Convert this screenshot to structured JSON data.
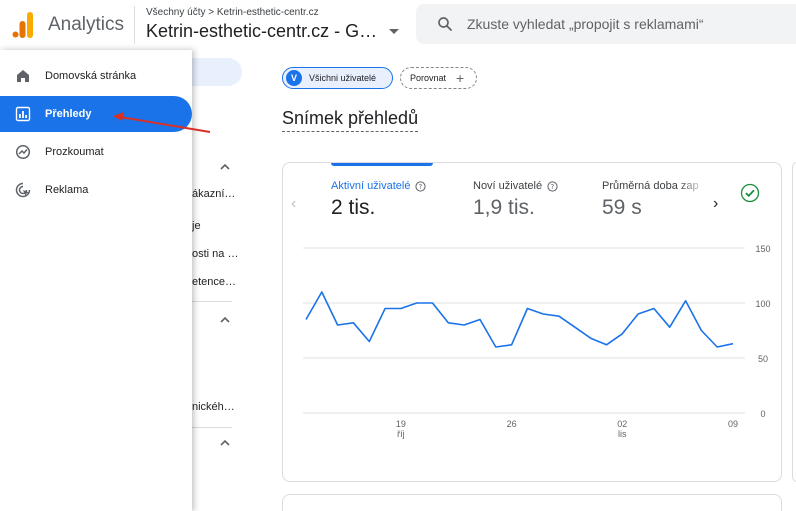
{
  "header": {
    "app_title": "Analytics",
    "breadcrumb": "Všechny účty > Ketrin-esthetic-centr.cz",
    "account_name": "Ketrin-esthetic-centr.cz - G…",
    "search_placeholder": "Zkuste vyhledat „propojit s reklamami“"
  },
  "nav": {
    "items": [
      {
        "label": "Domovská stránka",
        "icon": "home-icon"
      },
      {
        "label": "Přehledy",
        "icon": "reports-icon",
        "active": true
      },
      {
        "label": "Prozkoumat",
        "icon": "explore-icon"
      },
      {
        "label": "Reklama",
        "icon": "advertising-icon"
      }
    ]
  },
  "underlay": {
    "items": [
      "ákazní…",
      "je",
      "osti na …",
      "etence…",
      "nickéh…"
    ]
  },
  "filters": {
    "badge": "V",
    "all_users": "Všichni uživatelé",
    "compare": "Porovnat"
  },
  "page_title": "Snímek přehledů",
  "card": {
    "metrics": [
      {
        "label": "Aktivní uživatelé",
        "value": "2 tis.",
        "active": true
      },
      {
        "label": "Noví uživatelé",
        "value": "1,9 tis."
      },
      {
        "label": "Průměrná doba zap",
        "value": "59 s"
      }
    ]
  },
  "colors": {
    "accent": "#1a73e8",
    "arrow": "#d93025",
    "check": "#1e8e3e",
    "logo_orange": "#f9ab00",
    "logo_dark": "#e37400"
  },
  "chart_data": {
    "type": "line",
    "x_ticks": [
      {
        "label": "19",
        "sublabel": "říj",
        "index": 6
      },
      {
        "label": "26",
        "sublabel": "",
        "index": 13
      },
      {
        "label": "02",
        "sublabel": "lis",
        "index": 20
      },
      {
        "label": "09",
        "sublabel": "",
        "index": 27
      }
    ],
    "y_ticks": [
      0,
      50,
      100,
      150
    ],
    "ylim": [
      0,
      150
    ],
    "series": [
      {
        "values": [
          85,
          110,
          80,
          82,
          65,
          95,
          95,
          100,
          100,
          82,
          80,
          85,
          60,
          62,
          95,
          90,
          88,
          78,
          68,
          62,
          72,
          90,
          95,
          78,
          102,
          75,
          60,
          63
        ],
        "color": "#1a73e8"
      }
    ]
  }
}
